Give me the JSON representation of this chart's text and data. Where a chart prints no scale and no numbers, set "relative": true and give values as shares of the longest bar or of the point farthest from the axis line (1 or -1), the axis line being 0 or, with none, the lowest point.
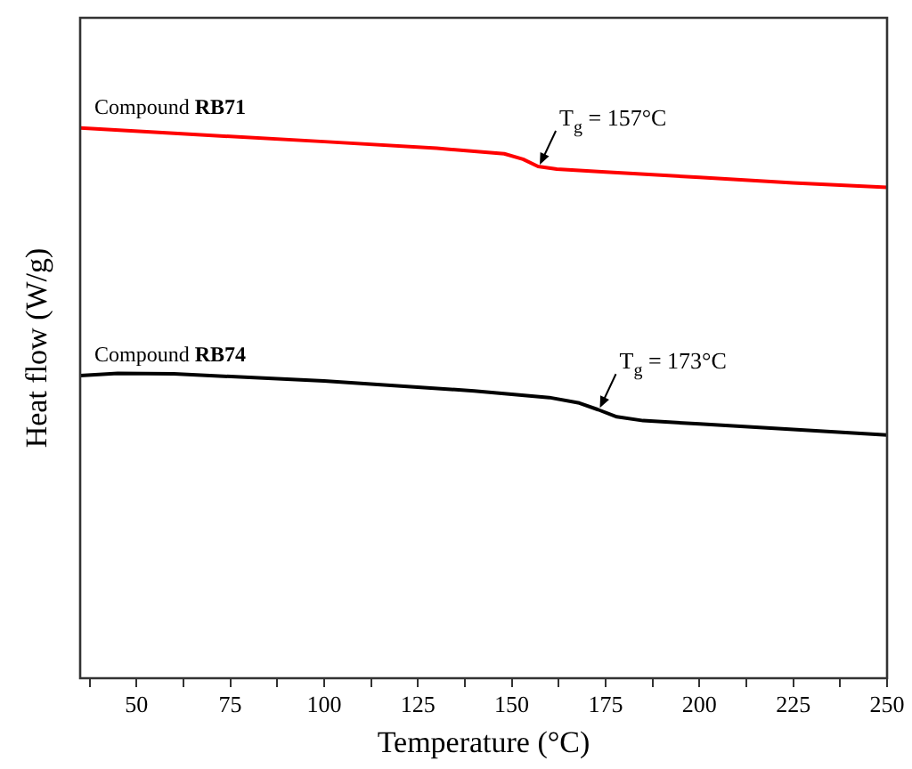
{
  "chart_data": {
    "type": "line",
    "relative": true,
    "xlabel": "Temperature (°C)",
    "ylabel": "Heat flow (W/g)",
    "xlim": [
      35,
      250
    ],
    "xticks": [
      {
        "value": 37.5,
        "label": null
      },
      50,
      {
        "value": 62.5,
        "label": null
      },
      75,
      {
        "value": 87.5,
        "label": null
      },
      100,
      {
        "value": 112.5,
        "label": null
      },
      125,
      {
        "value": 137.5,
        "label": null
      },
      150,
      {
        "value": 162.5,
        "label": null
      },
      175,
      {
        "value": 187.5,
        "label": null
      },
      200,
      {
        "value": 212.5,
        "label": null
      },
      225,
      {
        "value": 237.5,
        "label": null
      },
      250
    ],
    "grid": false,
    "legend": false,
    "marker": "none",
    "line_style": "solid",
    "series": [
      {
        "name": "Compound RB71",
        "color": "#ff0000",
        "x": [
          35,
          60,
          100,
          130,
          148,
          153,
          157,
          162,
          175,
          200,
          225,
          250
        ],
        "values": [
          1.0,
          0.99,
          0.975,
          0.963,
          0.953,
          0.943,
          0.93,
          0.925,
          0.92,
          0.91,
          0.9,
          0.892
        ]
      },
      {
        "name": "Compound RB74",
        "color": "#000000",
        "x": [
          35,
          45,
          60,
          100,
          140,
          160,
          168,
          173,
          178,
          185,
          200,
          225,
          250
        ],
        "values": [
          0.55,
          0.554,
          0.553,
          0.54,
          0.522,
          0.51,
          0.5,
          0.488,
          0.475,
          0.468,
          0.462,
          0.452,
          0.442
        ]
      }
    ],
    "annotations": [
      {
        "text": "T$_{g}$ = 157°C",
        "x": 157,
        "y": 0.93
      },
      {
        "text": "T$_{g}$ = 173°C",
        "x": 173,
        "y": 0.488
      }
    ]
  }
}
